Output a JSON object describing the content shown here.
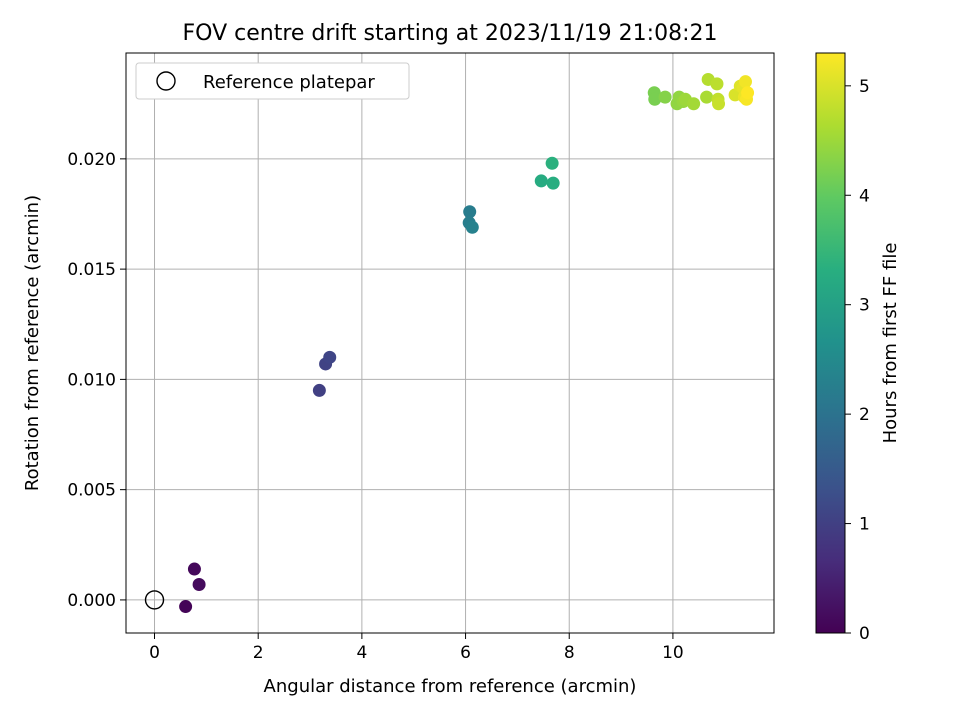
{
  "chart_data": {
    "type": "scatter",
    "title": "FOV centre drift starting at 2023/11/19 21:08:21",
    "xlabel": "Angular distance from reference (arcmin)",
    "ylabel": "Rotation from reference (arcmin)",
    "xlim": [
      -0.55,
      11.95
    ],
    "ylim": [
      -0.0015,
      0.0248
    ],
    "xticks": [
      0,
      2,
      4,
      6,
      8,
      10
    ],
    "xtick_labels": [
      "0",
      "2",
      "4",
      "6",
      "8",
      "10"
    ],
    "yticks": [
      0.0,
      0.005,
      0.01,
      0.015,
      0.02
    ],
    "ytick_labels": [
      "0.000",
      "0.005",
      "0.010",
      "0.015",
      "0.020"
    ],
    "grid": true,
    "legend": {
      "position": "upper-left",
      "entries": [
        "Reference platepar"
      ]
    },
    "colorbar": {
      "label": "Hours from first FF file",
      "colormap": "viridis",
      "range": [
        0,
        5.3
      ],
      "ticks": [
        0,
        1,
        2,
        3,
        4,
        5
      ],
      "tick_labels": [
        "0",
        "1",
        "2",
        "3",
        "4",
        "5"
      ]
    },
    "reference_point": {
      "x": 0.0,
      "y": 0.0,
      "marker": "open circle"
    },
    "points": [
      {
        "x": 0.6,
        "y": -0.0003,
        "c": 0.05
      },
      {
        "x": 0.77,
        "y": 0.0014,
        "c": 0.1
      },
      {
        "x": 0.86,
        "y": 0.0007,
        "c": 0.15
      },
      {
        "x": 3.18,
        "y": 0.0095,
        "c": 1.0
      },
      {
        "x": 3.3,
        "y": 0.0107,
        "c": 1.05
      },
      {
        "x": 3.38,
        "y": 0.011,
        "c": 1.1
      },
      {
        "x": 6.08,
        "y": 0.0176,
        "c": 2.2
      },
      {
        "x": 6.07,
        "y": 0.0171,
        "c": 2.25
      },
      {
        "x": 6.13,
        "y": 0.0169,
        "c": 2.3
      },
      {
        "x": 7.46,
        "y": 0.019,
        "c": 3.25
      },
      {
        "x": 7.69,
        "y": 0.0189,
        "c": 3.3
      },
      {
        "x": 7.67,
        "y": 0.0198,
        "c": 3.35
      },
      {
        "x": 9.64,
        "y": 0.023,
        "c": 4.2
      },
      {
        "x": 9.65,
        "y": 0.0227,
        "c": 4.2
      },
      {
        "x": 9.85,
        "y": 0.0228,
        "c": 4.3
      },
      {
        "x": 10.08,
        "y": 0.0225,
        "c": 4.4
      },
      {
        "x": 10.12,
        "y": 0.0228,
        "c": 4.4
      },
      {
        "x": 10.2,
        "y": 0.0226,
        "c": 4.45
      },
      {
        "x": 10.24,
        "y": 0.0227,
        "c": 4.5
      },
      {
        "x": 10.4,
        "y": 0.0225,
        "c": 4.55
      },
      {
        "x": 10.65,
        "y": 0.0228,
        "c": 4.6
      },
      {
        "x": 10.68,
        "y": 0.0236,
        "c": 4.7
      },
      {
        "x": 10.85,
        "y": 0.0234,
        "c": 4.75
      },
      {
        "x": 10.87,
        "y": 0.0227,
        "c": 4.8
      },
      {
        "x": 10.88,
        "y": 0.0225,
        "c": 4.85
      },
      {
        "x": 11.2,
        "y": 0.0229,
        "c": 5.0
      },
      {
        "x": 11.3,
        "y": 0.0233,
        "c": 5.05
      },
      {
        "x": 11.36,
        "y": 0.0232,
        "c": 5.1
      },
      {
        "x": 11.38,
        "y": 0.0228,
        "c": 5.15
      },
      {
        "x": 11.4,
        "y": 0.0235,
        "c": 5.2
      },
      {
        "x": 11.42,
        "y": 0.0227,
        "c": 5.25
      },
      {
        "x": 11.44,
        "y": 0.023,
        "c": 5.3
      }
    ]
  }
}
